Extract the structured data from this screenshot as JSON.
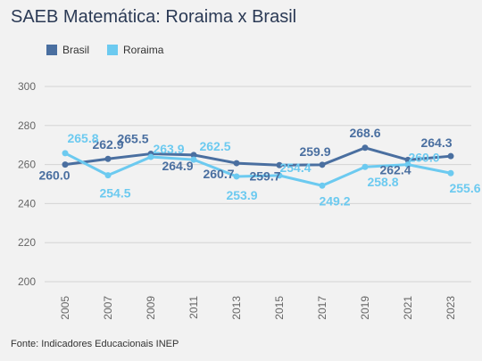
{
  "title": "SAEB Matemática: Roraima x Brasil",
  "source": "Fonte: Indicadores Educacionais INEP",
  "chart_data": {
    "type": "line",
    "title": "SAEB Matemática: Roraima x Brasil",
    "x": [
      "2005",
      "2007",
      "2009",
      "2011",
      "2013",
      "2015",
      "2017",
      "2019",
      "2021",
      "2023"
    ],
    "series": [
      {
        "name": "Brasil",
        "color": "#4a6fa0",
        "values": [
          260.0,
          262.9,
          265.5,
          264.9,
          260.7,
          259.7,
          259.9,
          268.6,
          262.4,
          264.3
        ],
        "labels": [
          "260.0",
          "262.9",
          "265.5",
          "264.9",
          "260.7",
          "259.7",
          "259.9",
          "268.6",
          "262.4",
          "264.3"
        ]
      },
      {
        "name": "Roraima",
        "color": "#6ccaf0",
        "values": [
          265.8,
          254.5,
          263.9,
          262.5,
          253.9,
          254.4,
          249.2,
          258.8,
          260.0,
          255.6
        ],
        "labels": [
          "265.8",
          "254.5",
          "263.9",
          "262.5",
          "253.9",
          "254.4",
          "249.2",
          "258.8",
          "260.0",
          "255.6"
        ]
      }
    ],
    "yticks": [
      "200",
      "220",
      "240",
      "260",
      "280",
      "300"
    ],
    "ylim": [
      200,
      300
    ],
    "grid": true,
    "legend": "top-left",
    "xlabel": "",
    "ylabel": ""
  }
}
